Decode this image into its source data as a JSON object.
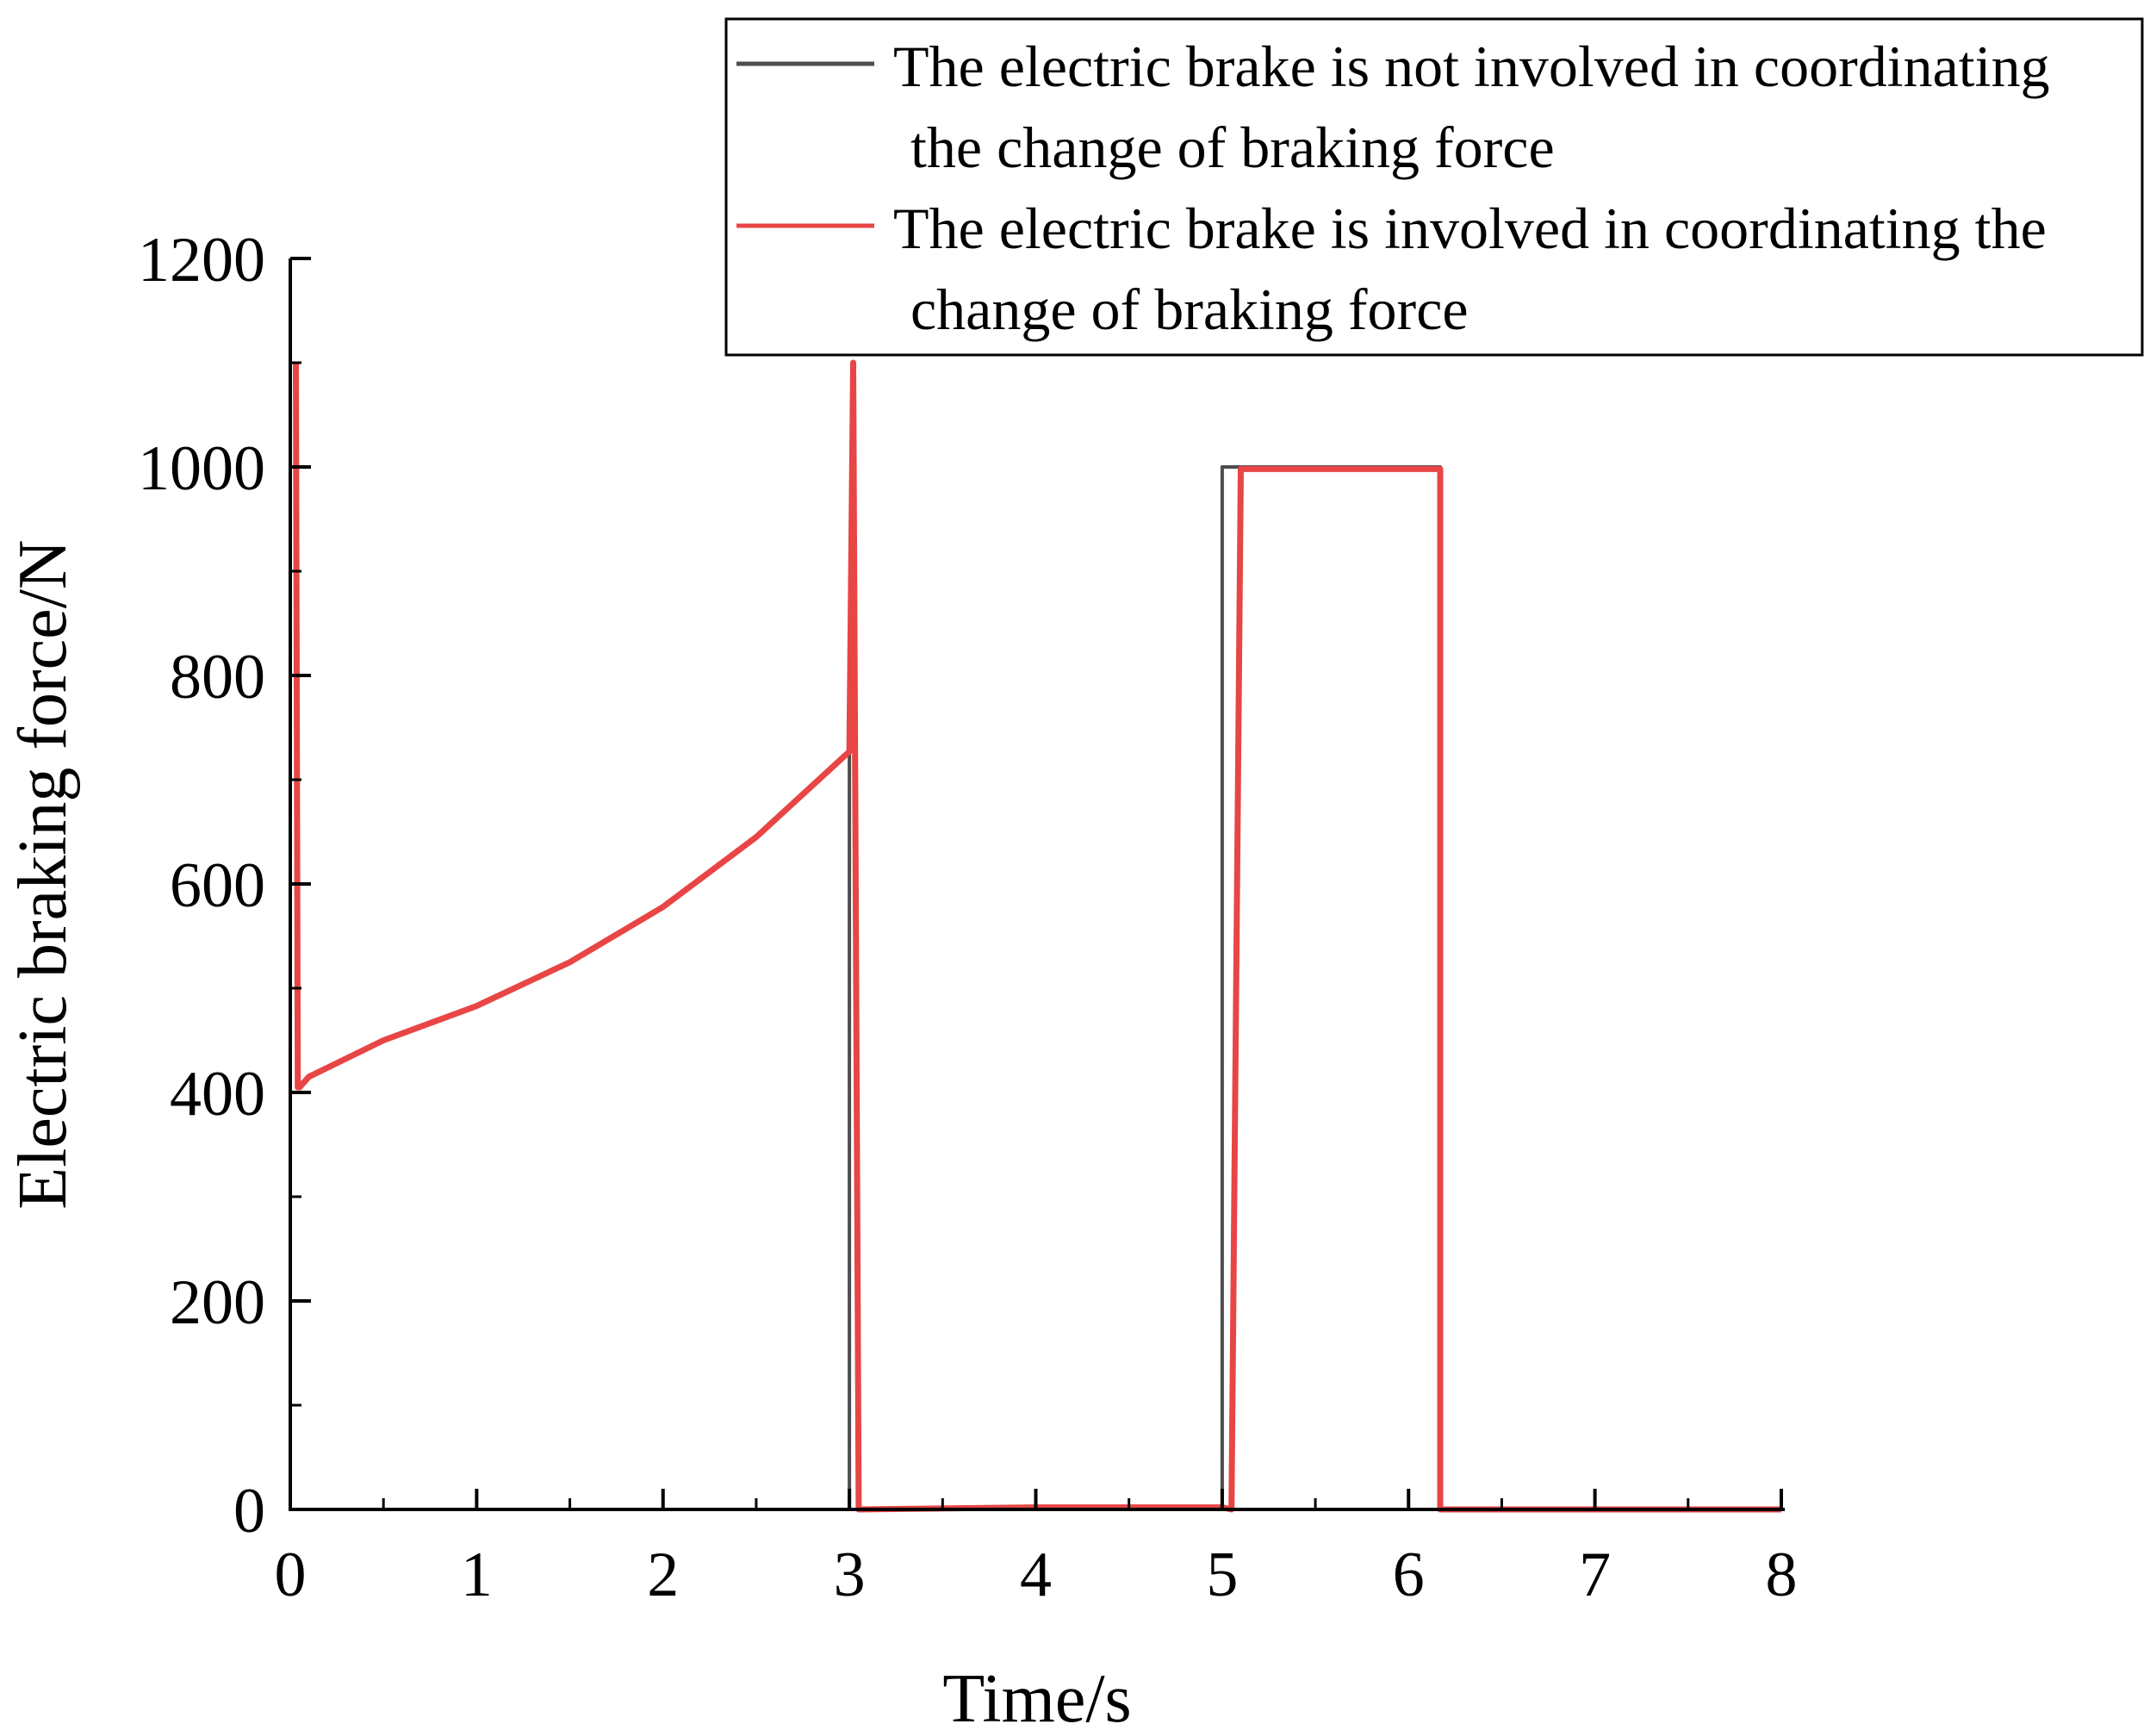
{
  "chart_data": {
    "type": "line",
    "title": "",
    "xlabel": "Time/s",
    "ylabel": "Electric braking force/N",
    "xlim": [
      0,
      8
    ],
    "ylim": [
      0,
      1200
    ],
    "xticks": [
      "0",
      "1",
      "2",
      "3",
      "4",
      "5",
      "6",
      "7",
      "8"
    ],
    "yticks": [
      "0",
      "200",
      "400",
      "600",
      "800",
      "1000",
      "1200"
    ],
    "grid": false,
    "legend_position": "top-right",
    "series": [
      {
        "name": "The electric brake is not involved in coordinating the change of braking force",
        "legend_lines": [
          "The electric brake is not involved in coordinating",
          "the change of braking force"
        ],
        "color": "#4d4d4d",
        "x": [
          0.03,
          0.04,
          0.05,
          0.1,
          0.5,
          1.0,
          1.5,
          2.0,
          2.5,
          3.0,
          3.0,
          3.05,
          4.0,
          5.0,
          5.0,
          6.17,
          6.17,
          8.0
        ],
        "y": [
          1100,
          405,
          405,
          415,
          450,
          483,
          525,
          578,
          645,
          727,
          0,
          0,
          2,
          2,
          1000,
          1000,
          0,
          0
        ]
      },
      {
        "name": "The electric brake is involved in coordinating the change of braking force",
        "legend_lines": [
          "The electric brake is involved in coordinating the",
          "change of braking force"
        ],
        "color": "#e84545",
        "x": [
          0.03,
          0.04,
          0.05,
          0.1,
          0.5,
          1.0,
          1.5,
          2.0,
          2.5,
          3.0,
          3.02,
          3.05,
          4.0,
          5.0,
          5.05,
          5.1,
          6.17,
          6.17,
          8.0
        ],
        "y": [
          1100,
          405,
          405,
          415,
          450,
          483,
          525,
          578,
          645,
          727,
          1100,
          0,
          2,
          2,
          0,
          998,
          998,
          0,
          0
        ]
      }
    ]
  }
}
